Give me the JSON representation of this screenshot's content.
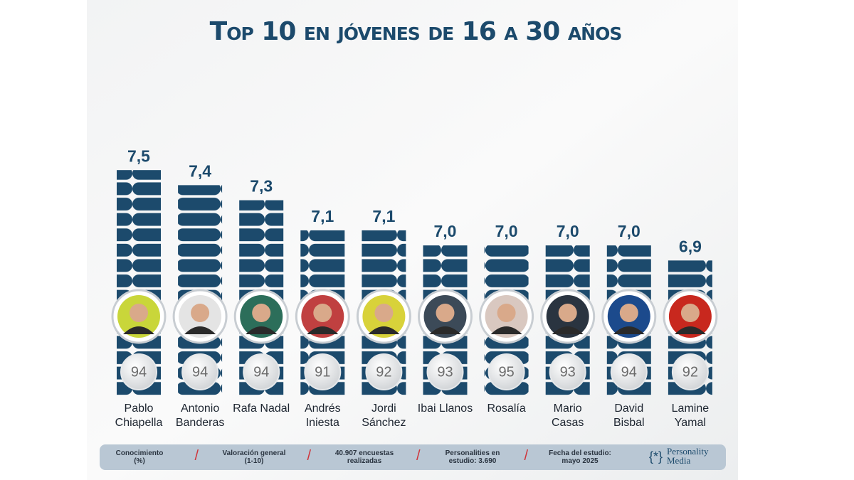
{
  "chart_data": {
    "type": "bar",
    "title": "Top 10 en jóvenes de 16 a 30 años",
    "categories": [
      "Pablo Chiapella",
      "Antonio Banderas",
      "Rafa Nadal",
      "Andrés Iniesta",
      "Jordi Sánchez",
      "Ibai Llanos",
      "Rosalía",
      "Mario Casas",
      "David Bisbal",
      "Lamine Yamal"
    ],
    "series": [
      {
        "name": "Valoración general (1-10)",
        "color": "#1c4a6c",
        "values": [
          7.5,
          7.4,
          7.3,
          7.1,
          7.1,
          7.0,
          7.0,
          7.0,
          7.0,
          6.9
        ],
        "value_labels": [
          "7,5",
          "7,4",
          "7,3",
          "7,1",
          "7,1",
          "7,0",
          "7,0",
          "7,0",
          "7,0",
          "6,9"
        ]
      },
      {
        "name": "Conocimiento (%)",
        "color": "#6b6b6b",
        "values": [
          94,
          94,
          94,
          91,
          92,
          93,
          95,
          93,
          94,
          92
        ]
      }
    ],
    "ylim": [
      6,
      7.6
    ]
  },
  "footer": {
    "items": [
      [
        "Conocimiento",
        "(%)"
      ],
      [
        "Valoración general",
        "(1-10)"
      ],
      [
        "40.907 encuestas",
        "realizadas"
      ],
      [
        "Personalities en",
        "estudio: 3.690"
      ],
      [
        "Fecha del estudio:",
        "mayo 2025"
      ]
    ],
    "logo": [
      "Personality",
      "Media"
    ]
  }
}
